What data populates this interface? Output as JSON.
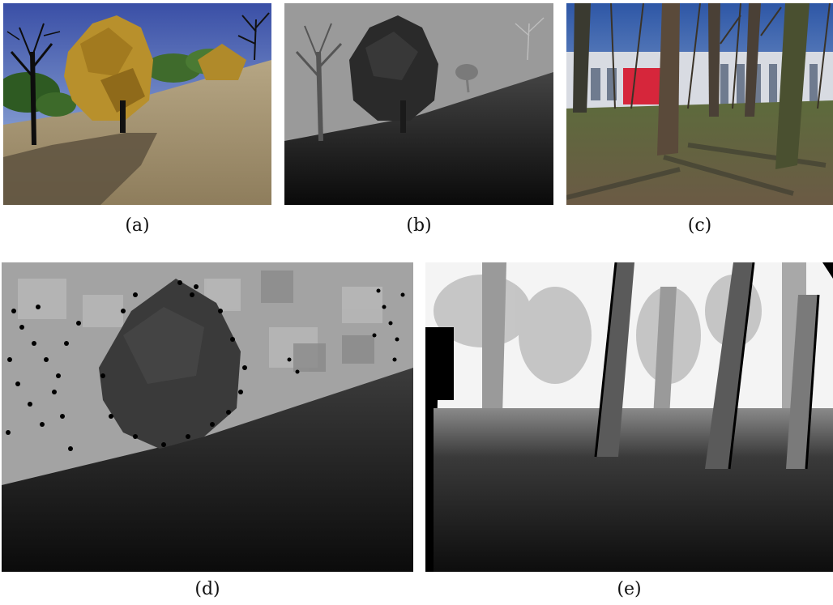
{
  "figure": {
    "panels": [
      {
        "id": "a",
        "caption": "(a)",
        "content": "synthetic forest scene render"
      },
      {
        "id": "b",
        "caption": "(b)",
        "content": "synthetic ground-truth depth map"
      },
      {
        "id": "c",
        "caption": "(c)",
        "content": "real photo of trees in front of building"
      },
      {
        "id": "d",
        "caption": "(d)",
        "content": "estimated depth map of synthetic scene"
      },
      {
        "id": "e",
        "caption": "(e)",
        "content": "estimated depth map of real scene"
      }
    ]
  }
}
